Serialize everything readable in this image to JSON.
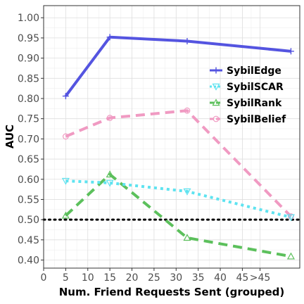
{
  "chart_data": {
    "type": "line",
    "title": "",
    "xlabel": "Num. Friend Requests Sent (grouped)",
    "ylabel": "AUC",
    "xlim": [
      0,
      58
    ],
    "ylim": [
      0.38,
      1.03
    ],
    "x_tick_values": [
      0,
      5,
      10,
      15,
      20,
      25,
      30,
      35,
      40,
      45,
      49
    ],
    "x_tick_labels": [
      "0",
      "5",
      "10",
      "15",
      "20",
      "25",
      "30",
      "35",
      "40",
      "45",
      ">45"
    ],
    "y_ticks": [
      0.4,
      0.45,
      0.5,
      0.55,
      0.6,
      0.65,
      0.7,
      0.75,
      0.8,
      0.85,
      0.9,
      0.95,
      1.0
    ],
    "y_tick_labels": [
      "0.40",
      "0.45",
      "0.50",
      "0.55",
      "0.60",
      "0.65",
      "0.70",
      "0.75",
      "0.80",
      "0.85",
      "0.90",
      "0.95",
      "1.00"
    ],
    "grid": true,
    "legend_position": "right",
    "reference_line": {
      "y": 0.5,
      "style": "dotted",
      "color": "#000000"
    },
    "series": [
      {
        "name": "SybilEdge",
        "color": "#5454e0",
        "dash": "solid",
        "marker": "plus",
        "x": [
          5,
          15,
          32.5,
          56
        ],
        "y": [
          0.806,
          0.952,
          0.942,
          0.917
        ]
      },
      {
        "name": "SybilSCAR",
        "color": "#5ee3f0",
        "dash": "dotted",
        "marker": "triangle-down",
        "x": [
          5,
          15,
          32.5,
          56
        ],
        "y": [
          0.596,
          0.591,
          0.57,
          0.506
        ]
      },
      {
        "name": "SybilRank",
        "color": "#5cc05c",
        "dash": "dashed",
        "marker": "triangle-up",
        "x": [
          5,
          15,
          32.5,
          56
        ],
        "y": [
          0.51,
          0.612,
          0.455,
          0.409
        ]
      },
      {
        "name": "SybilBelief",
        "color": "#f09ac2",
        "dash": "dashed",
        "marker": "circle",
        "x": [
          5,
          15,
          32.5,
          56
        ],
        "y": [
          0.706,
          0.752,
          0.77,
          0.508
        ]
      }
    ]
  }
}
